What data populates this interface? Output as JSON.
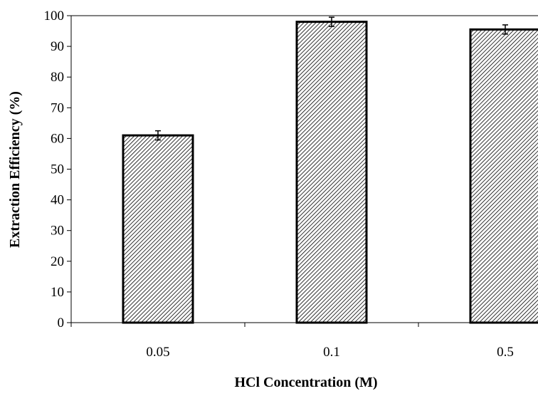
{
  "chart_data": {
    "type": "bar",
    "title": "",
    "xlabel": "HCl Concentration (M)",
    "ylabel": "Extraction Efficiency (%)",
    "categories": [
      "0.05",
      "0.1",
      "0.5"
    ],
    "values": [
      61,
      98,
      95.5
    ],
    "error": [
      1.5,
      1.5,
      1.5
    ],
    "ylim": [
      0,
      100
    ],
    "yticks": [
      "0",
      "10",
      "20",
      "30",
      "40",
      "50",
      "60",
      "70",
      "80",
      "90",
      "100"
    ],
    "grid": false,
    "legend": "none",
    "bar_fill": "hatched",
    "colors": {
      "bar_edge": "#000000",
      "hatch": "#000000",
      "bar_background": "#ffffff",
      "axis": "#000000"
    }
  }
}
